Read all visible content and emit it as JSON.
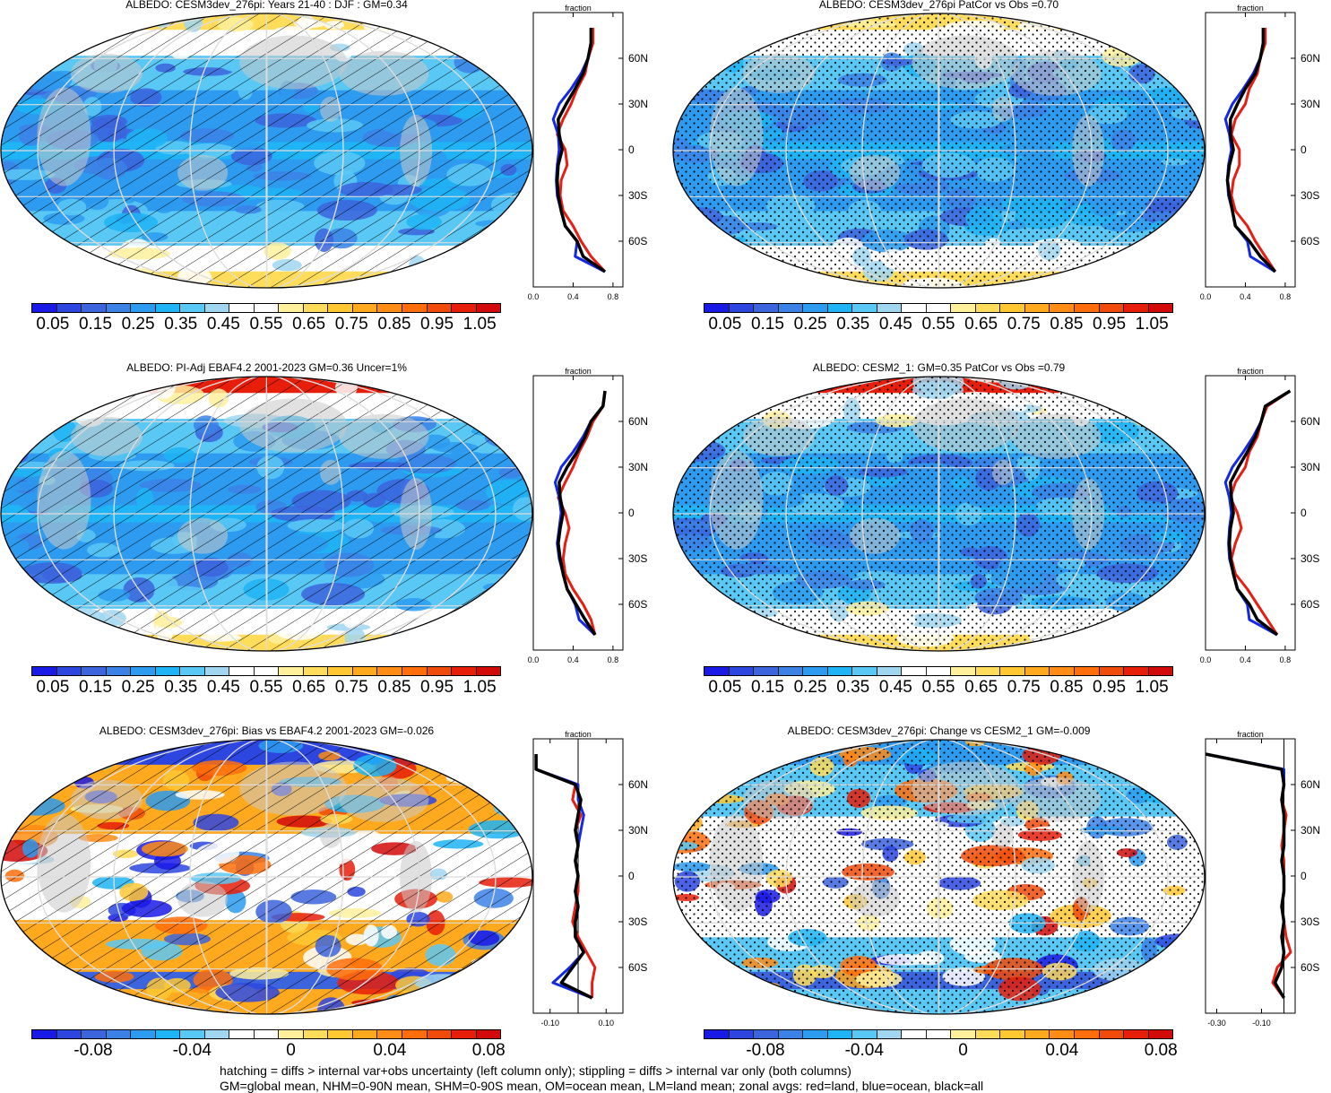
{
  "colors": {
    "seq": [
      "#1a1ae6",
      "#2d46e0",
      "#3c64dc",
      "#3c82e6",
      "#2d9bef",
      "#1eb4f5",
      "#5ac8f5",
      "#a0d6f0",
      "#ffffff",
      "#ffffff",
      "#fff09b",
      "#ffdc5a",
      "#ffc832",
      "#ffaa1e",
      "#ff8c14",
      "#ff6e0a",
      "#f04b0a",
      "#e61e0a",
      "#d20a0a"
    ],
    "div": [
      "#1a1ae6",
      "#2d46e0",
      "#3c64dc",
      "#3c82e6",
      "#2d9bef",
      "#1eb4f5",
      "#5ac8f5",
      "#a0d6f0",
      "#ffffff",
      "#ffffff",
      "#fff09b",
      "#ffdc5a",
      "#ffc832",
      "#ffaa1e",
      "#ff8c14",
      "#ff6e0a",
      "#f04b0a",
      "#e61e0a",
      "#d20a0a"
    ],
    "land": "#c8c8c8",
    "zonal_land": "#e61e14",
    "zonal_ocean": "#1428e6",
    "zonal_all": "#000000"
  },
  "panels": [
    {
      "title": "ALBEDO: CESM3dev_276pi: Years 21-40 : DJF : GM=0.34",
      "overlay": "hatch",
      "zonal_title": "fraction",
      "zonal_ticks": [
        "0.0",
        "0.4",
        "0.8"
      ],
      "lat_labels": [
        "60N",
        "30N",
        "0",
        "30S",
        "60S"
      ],
      "cbar_labels": [
        "0.05",
        "0.15",
        "0.25",
        "0.35",
        "0.45",
        "0.55",
        "0.65",
        "0.75",
        "0.85",
        "0.95",
        "1.05"
      ]
    },
    {
      "title": "ALBEDO: CESM3dev_276pi PatCor vs Obs =0.70",
      "overlay": "stipple",
      "zonal_title": "fraction",
      "zonal_ticks": [
        "0.0",
        "0.4",
        "0.8"
      ],
      "lat_labels": [
        "60N",
        "30N",
        "0",
        "30S",
        "60S"
      ],
      "cbar_labels": [
        "0.05",
        "0.15",
        "0.25",
        "0.35",
        "0.45",
        "0.55",
        "0.65",
        "0.75",
        "0.85",
        "0.95",
        "1.05"
      ]
    },
    {
      "title": "ALBEDO: PI-Adj EBAF4.2 2001-2023 GM=0.36 Uncer=1%",
      "overlay": "hatch",
      "zonal_title": "fraction",
      "zonal_ticks": [
        "0.0",
        "0.4",
        "0.8"
      ],
      "lat_labels": [
        "60N",
        "30N",
        "0",
        "30S",
        "60S"
      ],
      "cbar_labels": [
        "0.05",
        "0.15",
        "0.25",
        "0.35",
        "0.45",
        "0.55",
        "0.65",
        "0.75",
        "0.85",
        "0.95",
        "1.05"
      ]
    },
    {
      "title": "ALBEDO: CESM2_1: GM=0.35 PatCor vs Obs =0.79",
      "overlay": "stipple",
      "zonal_title": "fraction",
      "zonal_ticks": [
        "0.0",
        "0.4",
        "0.8"
      ],
      "lat_labels": [
        "60N",
        "30N",
        "0",
        "30S",
        "60S"
      ],
      "cbar_labels": [
        "0.05",
        "0.15",
        "0.25",
        "0.35",
        "0.45",
        "0.55",
        "0.65",
        "0.75",
        "0.85",
        "0.95",
        "1.05"
      ]
    },
    {
      "title": "ALBEDO: CESM3dev_276pi: Bias vs EBAF4.2 2001-2023 GM=-0.026",
      "overlay": "hatch",
      "zonal_title": "fraction",
      "zonal_ticks": [
        "-0.10",
        "0.10"
      ],
      "lat_labels": [
        "60N",
        "30N",
        "0",
        "30S",
        "60S"
      ],
      "cbar_labels": [
        "-0.08",
        "-0.04",
        "0",
        "0.04",
        "0.08"
      ]
    },
    {
      "title": "ALBEDO: CESM3dev_276pi: Change vs CESM2_1 GM=-0.009",
      "overlay": "stipple",
      "zonal_title": "fraction",
      "zonal_ticks": [
        "-0.30",
        "-0.10"
      ],
      "lat_labels": [
        "60N",
        "30N",
        "0",
        "30S",
        "60S"
      ],
      "cbar_labels": [
        "-0.08",
        "-0.04",
        "0",
        "0.04",
        "0.08"
      ]
    }
  ],
  "footer": {
    "line1": "hatching = diffs > internal var+obs uncertainty (left column only); stippling = diffs > internal var only (both columns)",
    "line2": "GM=global mean, NHM=0-90N mean, SHM=0-90S mean, OM=ocean mean, LM=land mean; zonal avgs: red=land, blue=ocean, black=all"
  },
  "chart_data": [
    {
      "type": "heatmap",
      "title": "ALBEDO: CESM3dev_276pi: Years 21-40 : DJF : GM=0.34",
      "colorbar": [
        0.05,
        0.15,
        0.25,
        0.35,
        0.45,
        0.55,
        0.65,
        0.75,
        0.85,
        0.95,
        1.05
      ],
      "zonal_mean": {
        "xlabel": "fraction",
        "xlim": [
          0,
          0.9
        ],
        "lat": [
          -80,
          -70,
          -60,
          -50,
          -40,
          -30,
          -20,
          -10,
          0,
          10,
          20,
          30,
          40,
          50,
          60,
          70,
          80
        ],
        "all": [
          0.72,
          0.5,
          0.44,
          0.32,
          0.28,
          0.25,
          0.24,
          0.25,
          0.29,
          0.26,
          0.25,
          0.33,
          0.42,
          0.5,
          0.55,
          0.58,
          0.58
        ],
        "land": [
          0.72,
          0.58,
          0.48,
          0.4,
          0.3,
          0.27,
          0.28,
          0.34,
          0.32,
          0.24,
          0.3,
          0.38,
          0.44,
          0.52,
          0.55,
          0.6,
          0.6
        ],
        "ocean": [
          0.72,
          0.42,
          0.44,
          0.32,
          0.28,
          0.24,
          0.23,
          0.24,
          0.26,
          0.25,
          0.2,
          0.26,
          0.38,
          0.48,
          0.55,
          0.58,
          0.58
        ]
      }
    },
    {
      "type": "heatmap",
      "title": "ALBEDO: CESM3dev_276pi PatCor vs Obs =0.70",
      "colorbar": [
        0.05,
        0.15,
        0.25,
        0.35,
        0.45,
        0.55,
        0.65,
        0.75,
        0.85,
        0.95,
        1.05
      ],
      "zonal_mean": {
        "xlabel": "fraction",
        "xlim": [
          0,
          0.9
        ],
        "lat": [
          -80,
          -70,
          -60,
          -50,
          -40,
          -30,
          -20,
          -10,
          0,
          10,
          20,
          30,
          40,
          50,
          60,
          70,
          80
        ],
        "all": [
          0.7,
          0.55,
          0.44,
          0.3,
          0.27,
          0.24,
          0.22,
          0.24,
          0.28,
          0.25,
          0.25,
          0.32,
          0.4,
          0.5,
          0.55,
          0.58,
          0.58
        ],
        "land": [
          0.7,
          0.6,
          0.5,
          0.42,
          0.3,
          0.26,
          0.28,
          0.34,
          0.34,
          0.26,
          0.3,
          0.4,
          0.44,
          0.52,
          0.55,
          0.6,
          0.6
        ],
        "ocean": [
          0.7,
          0.45,
          0.42,
          0.3,
          0.27,
          0.23,
          0.22,
          0.23,
          0.26,
          0.24,
          0.2,
          0.27,
          0.38,
          0.48,
          0.55,
          0.58,
          0.58
        ]
      }
    },
    {
      "type": "heatmap",
      "title": "ALBEDO: PI-Adj EBAF4.2 2001-2023 GM=0.36 Uncer=1%",
      "colorbar": [
        0.05,
        0.15,
        0.25,
        0.35,
        0.45,
        0.55,
        0.65,
        0.75,
        0.85,
        0.95,
        1.05
      ],
      "zonal_mean": {
        "xlabel": "fraction",
        "xlim": [
          0,
          0.9
        ],
        "lat": [
          -80,
          -70,
          -60,
          -50,
          -40,
          -30,
          -20,
          -10,
          0,
          10,
          20,
          30,
          40,
          50,
          60,
          70,
          80
        ],
        "all": [
          0.62,
          0.52,
          0.43,
          0.34,
          0.3,
          0.27,
          0.25,
          0.27,
          0.3,
          0.27,
          0.26,
          0.34,
          0.44,
          0.52,
          0.58,
          0.7,
          0.72
        ],
        "land": [
          0.62,
          0.58,
          0.5,
          0.4,
          0.32,
          0.3,
          0.32,
          0.36,
          0.32,
          0.25,
          0.32,
          0.4,
          0.46,
          0.54,
          0.6,
          0.7,
          0.72
        ],
        "ocean": [
          0.62,
          0.46,
          0.42,
          0.34,
          0.3,
          0.26,
          0.24,
          0.26,
          0.28,
          0.26,
          0.22,
          0.28,
          0.4,
          0.5,
          0.58,
          0.7,
          0.72
        ]
      }
    },
    {
      "type": "heatmap",
      "title": "ALBEDO: CESM2_1: GM=0.35 PatCor vs Obs =0.79",
      "colorbar": [
        0.05,
        0.15,
        0.25,
        0.35,
        0.45,
        0.55,
        0.65,
        0.75,
        0.85,
        0.95,
        1.05
      ],
      "zonal_mean": {
        "xlabel": "fraction",
        "xlim": [
          0,
          0.9
        ],
        "lat": [
          -80,
          -70,
          -60,
          -50,
          -40,
          -30,
          -20,
          -10,
          0,
          10,
          20,
          30,
          40,
          50,
          60,
          70,
          80
        ],
        "all": [
          0.72,
          0.52,
          0.44,
          0.32,
          0.28,
          0.25,
          0.24,
          0.25,
          0.28,
          0.26,
          0.25,
          0.33,
          0.42,
          0.5,
          0.56,
          0.6,
          0.85
        ],
        "land": [
          0.72,
          0.62,
          0.52,
          0.42,
          0.3,
          0.26,
          0.3,
          0.36,
          0.32,
          0.25,
          0.3,
          0.4,
          0.44,
          0.52,
          0.56,
          0.62,
          0.85
        ],
        "ocean": [
          0.72,
          0.44,
          0.42,
          0.32,
          0.28,
          0.24,
          0.23,
          0.24,
          0.26,
          0.24,
          0.2,
          0.27,
          0.38,
          0.48,
          0.56,
          0.6,
          0.85
        ]
      }
    },
    {
      "type": "heatmap",
      "title": "ALBEDO: CESM3dev_276pi: Bias vs EBAF4.2 2001-2023 GM=-0.026",
      "colorbar": [
        -0.08,
        -0.04,
        0,
        0.04,
        0.08
      ],
      "zonal_mean": {
        "xlabel": "fraction",
        "xlim": [
          -0.16,
          0.16
        ],
        "lat": [
          -80,
          -70,
          -60,
          -50,
          -40,
          -30,
          -20,
          -10,
          0,
          10,
          20,
          30,
          40,
          50,
          60,
          70,
          80
        ],
        "all": [
          0.05,
          -0.06,
          -0.02,
          0.02,
          -0.01,
          -0.01,
          0.0,
          -0.01,
          0.0,
          -0.01,
          0.0,
          -0.01,
          0.0,
          0.01,
          -0.01,
          -0.15,
          -0.15
        ],
        "land": [
          0.05,
          0.05,
          0.06,
          0.03,
          0.0,
          -0.02,
          -0.01,
          0.0,
          0.0,
          -0.01,
          0.0,
          -0.01,
          0.01,
          -0.02,
          -0.01,
          -0.15,
          -0.15
        ],
        "ocean": [
          0.05,
          -0.09,
          -0.03,
          0.02,
          -0.01,
          -0.01,
          0.0,
          -0.01,
          0.0,
          -0.01,
          0.0,
          0.01,
          0.02,
          0.0,
          0.0,
          -0.15,
          -0.15
        ]
      }
    },
    {
      "type": "heatmap",
      "title": "ALBEDO: CESM3dev_276pi: Change vs CESM2_1 GM=-0.009",
      "colorbar": [
        -0.08,
        -0.04,
        0,
        0.04,
        0.08
      ],
      "zonal_mean": {
        "xlabel": "fraction",
        "xlim": [
          -0.35,
          0.05
        ],
        "lat": [
          -80,
          -70,
          -60,
          -50,
          -40,
          -30,
          -20,
          -10,
          0,
          10,
          20,
          30,
          40,
          50,
          60,
          70,
          80
        ],
        "all": [
          0.0,
          -0.04,
          -0.01,
          0.0,
          -0.01,
          0.0,
          -0.01,
          0.0,
          0.0,
          -0.01,
          0.0,
          0.0,
          0.0,
          -0.01,
          0.0,
          -0.01,
          -0.35
        ],
        "land": [
          0.0,
          -0.05,
          -0.03,
          0.03,
          0.01,
          0.0,
          -0.01,
          0.0,
          0.0,
          0.0,
          -0.01,
          0.0,
          0.01,
          -0.01,
          0.0,
          -0.01,
          -0.35
        ],
        "ocean": [
          0.0,
          -0.04,
          -0.01,
          0.0,
          -0.01,
          0.0,
          -0.01,
          0.0,
          0.0,
          -0.01,
          0.0,
          0.0,
          0.0,
          -0.01,
          0.0,
          0.0,
          -0.35
        ]
      }
    }
  ]
}
